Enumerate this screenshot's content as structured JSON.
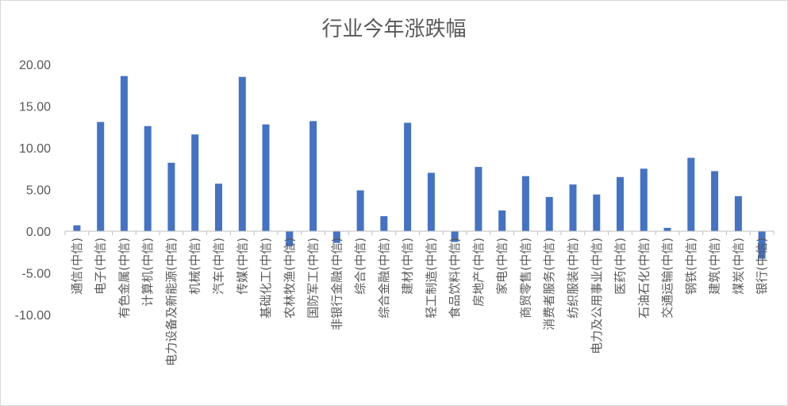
{
  "chart_data": {
    "type": "bar",
    "title": "行业今年涨跌幅",
    "xlabel": "",
    "ylabel": "",
    "ylim": [
      -10,
      20
    ],
    "yticks": [
      "20.00",
      "15.00",
      "10.00",
      "5.00",
      "0.00",
      "-5.00",
      "-10.00"
    ],
    "ytick_values": [
      20,
      15,
      10,
      5,
      0,
      -5,
      -10
    ],
    "categories": [
      "通信(中信)",
      "电子(中信)",
      "有色金属(中信)",
      "计算机(中信)",
      "电力设备及新能源(中信)",
      "机械(中信)",
      "汽车(中信)",
      "传媒(中信)",
      "基础化工(中信)",
      "农林牧渔(中信)",
      "国防军工(中信)",
      "非银行金融(中信)",
      "综合(中信)",
      "综合金融(中信)",
      "建材(中信)",
      "轻工制造(中信)",
      "食品饮料(中信)",
      "房地产(中信)",
      "家电(中信)",
      "商贸零售(中信)",
      "消费者服务(中信)",
      "纺织服装(中信)",
      "电力及公用事业(中信)",
      "医药(中信)",
      "石油石化(中信)",
      "交通运输(中信)",
      "钢铁(中信)",
      "建筑(中信)",
      "煤炭(中信)",
      "银行(中信)"
    ],
    "values": [
      0.7,
      13.1,
      18.6,
      12.6,
      8.2,
      11.6,
      5.7,
      18.5,
      12.8,
      -1.8,
      13.2,
      -1.4,
      4.9,
      1.8,
      13.0,
      7.0,
      -1.3,
      7.7,
      2.5,
      6.6,
      4.1,
      5.6,
      4.4,
      6.5,
      7.5,
      0.4,
      8.8,
      7.2,
      4.2,
      -3.3
    ],
    "bar_color": "#4472c4",
    "grid": false,
    "legend": "none"
  }
}
